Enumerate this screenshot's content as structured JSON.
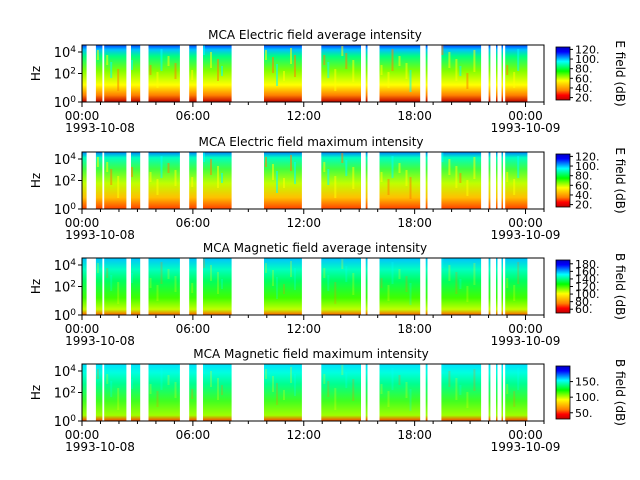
{
  "colors": {
    "colormap": [
      "#0000c0",
      "#0000ff",
      "#0080ff",
      "#00ffff",
      "#00ff80",
      "#00ff00",
      "#80ff00",
      "#ffff00",
      "#ffc000",
      "#ff8000",
      "#ff0000",
      "#c00000"
    ]
  },
  "chart_data": [
    {
      "type": "heatmap",
      "title": "MCA  Electric field average intensity",
      "ylabel": "Hz",
      "y_scale": "log",
      "y_ticks": [
        "10^0",
        "10^2",
        "10^4"
      ],
      "x_ticks": [
        "00:00",
        "06:00",
        "12:00",
        "18:00",
        "00:00"
      ],
      "x_dates": [
        "1993-10-08",
        "1993-10-09"
      ],
      "xlim": [
        "1993-10-08 00:00",
        "1993-10-09 01:00"
      ],
      "data_intervals_hours": [
        [
          0.0,
          0.25
        ],
        [
          0.75,
          1.1
        ],
        [
          1.2,
          2.4
        ],
        [
          2.65,
          3.15
        ],
        [
          3.6,
          5.3
        ],
        [
          5.8,
          6.2
        ],
        [
          6.55,
          8.1
        ],
        [
          9.85,
          11.9
        ],
        [
          12.95,
          15.1
        ],
        [
          15.35,
          15.45
        ],
        [
          16.1,
          18.3
        ],
        [
          18.6,
          18.7
        ],
        [
          19.45,
          21.6
        ],
        [
          22.0,
          22.1
        ],
        [
          22.4,
          22.45
        ],
        [
          22.7,
          22.75
        ],
        [
          22.9,
          24.1
        ]
      ],
      "colorbar": {
        "label": "E field (dB)",
        "ticks": [
          "20.",
          "40.",
          "60.",
          "80.",
          "100.",
          "120."
        ],
        "range": [
          15,
          125
        ]
      }
    },
    {
      "type": "heatmap",
      "title": "MCA  Electric field maximum intensity",
      "ylabel": "Hz",
      "y_scale": "log",
      "y_ticks": [
        "10^0",
        "10^2",
        "10^4"
      ],
      "x_ticks": [
        "00:00",
        "06:00",
        "12:00",
        "18:00",
        "00:00"
      ],
      "x_dates": [
        "1993-10-08",
        "1993-10-09"
      ],
      "xlim": [
        "1993-10-08 00:00",
        "1993-10-09 01:00"
      ],
      "data_intervals_hours": [
        [
          0.0,
          0.25
        ],
        [
          0.75,
          1.1
        ],
        [
          1.2,
          2.4
        ],
        [
          2.65,
          3.15
        ],
        [
          3.6,
          5.3
        ],
        [
          5.8,
          6.2
        ],
        [
          6.55,
          8.1
        ],
        [
          9.85,
          11.9
        ],
        [
          12.95,
          15.1
        ],
        [
          15.35,
          15.45
        ],
        [
          16.1,
          18.3
        ],
        [
          18.6,
          18.7
        ],
        [
          19.45,
          21.6
        ],
        [
          22.0,
          22.1
        ],
        [
          22.4,
          22.45
        ],
        [
          22.7,
          22.75
        ],
        [
          22.9,
          24.1
        ]
      ],
      "colorbar": {
        "label": "E field (dB)",
        "ticks": [
          "20.",
          "40.",
          "60.",
          "80.",
          "100.",
          "120."
        ],
        "range": [
          15,
          125
        ]
      }
    },
    {
      "type": "heatmap",
      "title": "MCA  Magnetic field average intensity",
      "ylabel": "Hz",
      "y_scale": "log",
      "y_ticks": [
        "10^0",
        "10^2",
        "10^4"
      ],
      "x_ticks": [
        "00:00",
        "06:00",
        "12:00",
        "18:00",
        "00:00"
      ],
      "x_dates": [
        "1993-10-08",
        "1993-10-09"
      ],
      "xlim": [
        "1993-10-08 00:00",
        "1993-10-09 01:00"
      ],
      "data_intervals_hours": [
        [
          0.0,
          0.25
        ],
        [
          0.75,
          1.1
        ],
        [
          1.2,
          2.4
        ],
        [
          2.65,
          3.15
        ],
        [
          3.6,
          5.3
        ],
        [
          5.8,
          6.2
        ],
        [
          6.55,
          8.1
        ],
        [
          9.85,
          11.9
        ],
        [
          12.95,
          15.1
        ],
        [
          15.35,
          15.45
        ],
        [
          16.1,
          18.3
        ],
        [
          18.6,
          18.7
        ],
        [
          19.45,
          21.6
        ],
        [
          22.0,
          22.1
        ],
        [
          22.4,
          22.45
        ],
        [
          22.7,
          22.75
        ],
        [
          22.9,
          24.1
        ]
      ],
      "colorbar": {
        "label": "B field (dB)",
        "ticks": [
          "60.",
          "80.",
          "100.",
          "120.",
          "140.",
          "160.",
          "180."
        ],
        "range": [
          50,
          190
        ]
      }
    },
    {
      "type": "heatmap",
      "title": "MCA  Magnetic field maximum intensity",
      "ylabel": "Hz",
      "y_scale": "log",
      "y_ticks": [
        "10^0",
        "10^2",
        "10^4"
      ],
      "x_ticks": [
        "00:00",
        "06:00",
        "12:00",
        "18:00",
        "00:00"
      ],
      "x_dates": [
        "1993-10-08",
        "1993-10-09"
      ],
      "xlim": [
        "1993-10-08 00:00",
        "1993-10-09 01:00"
      ],
      "data_intervals_hours": [
        [
          0.0,
          0.25
        ],
        [
          0.75,
          1.1
        ],
        [
          1.2,
          2.4
        ],
        [
          2.65,
          3.15
        ],
        [
          3.6,
          5.3
        ],
        [
          5.8,
          6.2
        ],
        [
          6.55,
          8.1
        ],
        [
          9.85,
          11.9
        ],
        [
          12.95,
          15.1
        ],
        [
          15.35,
          15.45
        ],
        [
          16.1,
          18.3
        ],
        [
          18.6,
          18.7
        ],
        [
          19.45,
          21.6
        ],
        [
          22.0,
          22.1
        ],
        [
          22.4,
          22.45
        ],
        [
          22.7,
          22.75
        ],
        [
          22.9,
          24.1
        ]
      ],
      "colorbar": {
        "label": "B field (dB)",
        "ticks": [
          "50.",
          "100.",
          "150."
        ],
        "range": [
          30,
          200
        ]
      }
    }
  ]
}
